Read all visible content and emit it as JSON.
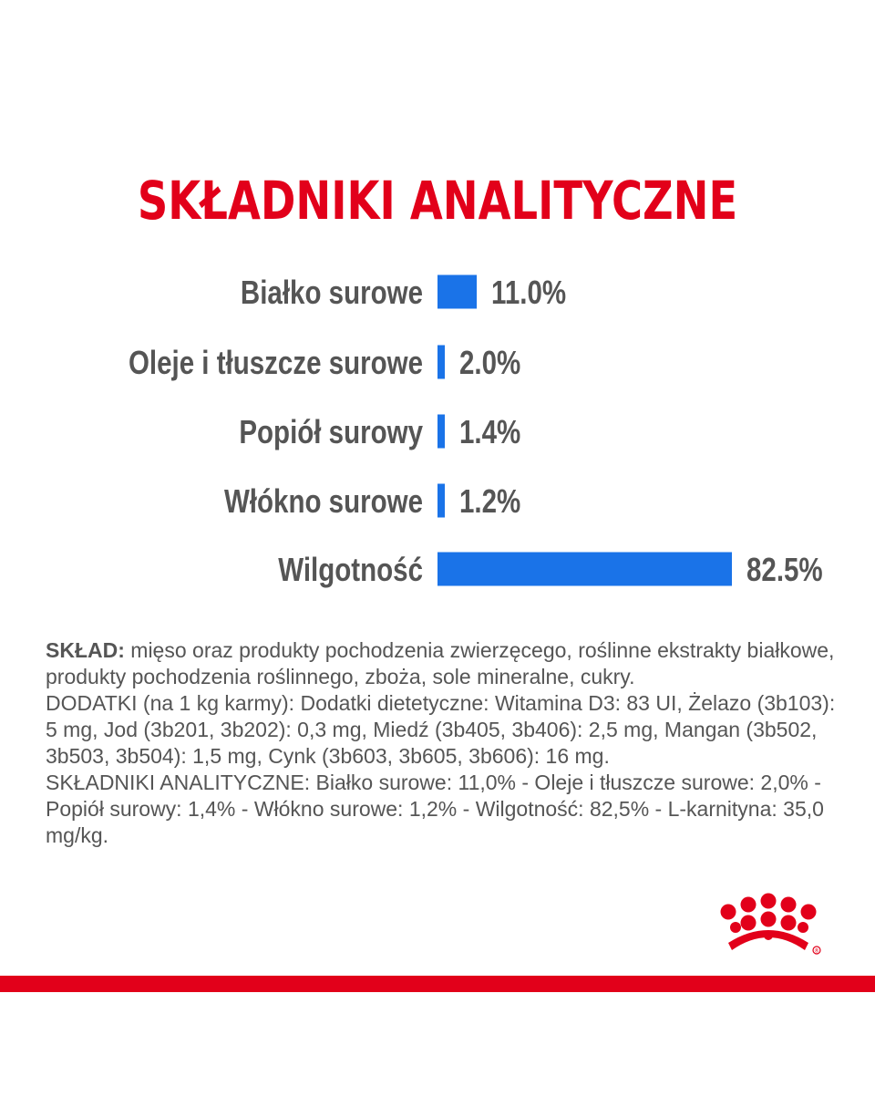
{
  "title": "SKŁADNIKI ANALITYCZNE",
  "chart_data": {
    "type": "bar",
    "orientation": "horizontal",
    "categories": [
      "Białko surowe",
      "Oleje i tłuszcze surowe",
      "Popiół surowy",
      "Włókno surowe",
      "Wilgotność"
    ],
    "values": [
      11.0,
      2.0,
      1.4,
      1.2,
      82.5
    ],
    "value_labels": [
      "11.0%",
      "2.0%",
      "1.4%",
      "1.2%",
      "82.5%"
    ],
    "bar_color": "#1a73e8",
    "xlim": [
      0,
      82.5
    ],
    "grid": false,
    "legend": "none"
  },
  "composition": {
    "lead": "SKŁAD:",
    "line1": " mięso oraz produkty pochodzenia zwierzęcego, roślinne ekstrakty białkowe, produkty pochodzenia roślinnego, zboża, sole mineralne, cukry.",
    "line2": "DODATKI (na 1 kg karmy): Dodatki dietetyczne: Witamina D3: 83 UI, Żelazo (3b103): 5 mg, Jod (3b201, 3b202): 0,3 mg, Miedź (3b405, 3b406): 2,5 mg, Mangan (3b502, 3b503, 3b504): 1,5 mg, Cynk (3b603, 3b605, 3b606): 16 mg.",
    "line3": "SKŁADNIKI ANALITYCZNE: Białko surowe: 11,0% - Oleje i tłuszcze surowe: 2,0% - Popiół surowy: 1,4% - Włókno surowe: 1,2% - Wilgotność: 82,5% - L-karnityna: 35,0 mg/kg."
  },
  "colors": {
    "brand_red": "#e2001a",
    "bar_blue": "#1a73e8",
    "text_gray": "#555555"
  },
  "logo": {
    "name": "crown-logo-icon"
  }
}
